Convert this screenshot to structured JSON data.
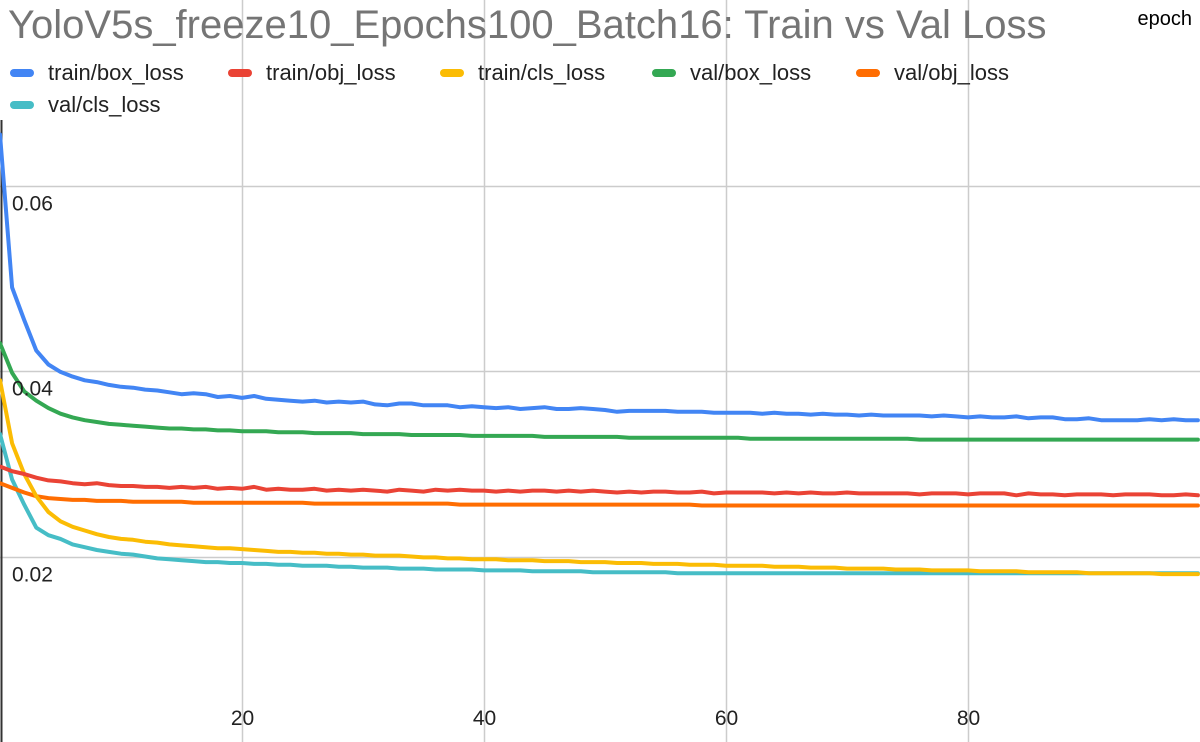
{
  "chart_data": {
    "type": "line",
    "title": "YoloV5s_freeze10_Epochs100_Batch16: Train vs Val Loss",
    "xlabel": "epoch",
    "ylabel": "",
    "xlim": [
      0,
      99
    ],
    "ylim": [
      0,
      0.066
    ],
    "x_ticks": [
      20,
      40,
      60,
      80
    ],
    "y_ticks": [
      0.02,
      0.04,
      0.06
    ],
    "x_tick_labels": [
      "20",
      "40",
      "60",
      "80"
    ],
    "y_tick_labels": [
      "0.02",
      "0.04",
      "0.06"
    ],
    "grid": true,
    "legend_position": "top",
    "x": [
      0,
      1,
      2,
      3,
      4,
      5,
      6,
      7,
      8,
      9,
      10,
      11,
      12,
      13,
      14,
      15,
      16,
      17,
      18,
      19,
      20,
      21,
      22,
      23,
      24,
      25,
      26,
      27,
      28,
      29,
      30,
      31,
      32,
      33,
      34,
      35,
      36,
      37,
      38,
      39,
      40,
      41,
      42,
      43,
      44,
      45,
      46,
      47,
      48,
      49,
      50,
      51,
      52,
      53,
      54,
      55,
      56,
      57,
      58,
      59,
      60,
      61,
      62,
      63,
      64,
      65,
      66,
      67,
      68,
      69,
      70,
      71,
      72,
      73,
      74,
      75,
      76,
      77,
      78,
      79,
      80,
      81,
      82,
      83,
      84,
      85,
      86,
      87,
      88,
      89,
      90,
      91,
      92,
      93,
      94,
      95,
      96,
      97,
      98,
      99
    ],
    "series": [
      {
        "name": "train/box_loss",
        "color": "#4285f4",
        "values": [
          0.0655,
          0.049,
          0.0455,
          0.0422,
          0.0407,
          0.0399,
          0.0394,
          0.039,
          0.0388,
          0.0385,
          0.0383,
          0.0382,
          0.038,
          0.0379,
          0.0377,
          0.0375,
          0.0376,
          0.0375,
          0.0372,
          0.0373,
          0.0371,
          0.0373,
          0.037,
          0.0369,
          0.0368,
          0.0367,
          0.0368,
          0.0366,
          0.0367,
          0.0366,
          0.0367,
          0.0364,
          0.0363,
          0.0365,
          0.0365,
          0.0363,
          0.0363,
          0.0363,
          0.0361,
          0.0362,
          0.0361,
          0.036,
          0.0361,
          0.0359,
          0.036,
          0.0361,
          0.0359,
          0.0359,
          0.036,
          0.0359,
          0.0358,
          0.0356,
          0.0357,
          0.0357,
          0.0357,
          0.0357,
          0.0356,
          0.0356,
          0.0356,
          0.0355,
          0.0355,
          0.0355,
          0.0355,
          0.0354,
          0.0355,
          0.0354,
          0.0354,
          0.0353,
          0.0354,
          0.0353,
          0.0353,
          0.0352,
          0.0353,
          0.0352,
          0.0352,
          0.0352,
          0.0352,
          0.0351,
          0.0352,
          0.0351,
          0.035,
          0.0351,
          0.035,
          0.035,
          0.0351,
          0.0349,
          0.035,
          0.035,
          0.0348,
          0.0348,
          0.0349,
          0.0347,
          0.0347,
          0.0347,
          0.0347,
          0.0348,
          0.0347,
          0.0348,
          0.0347,
          0.0347
        ]
      },
      {
        "name": "train/obj_loss",
        "color": "#ea4335",
        "values": [
          0.0297,
          0.0292,
          0.0289,
          0.0285,
          0.0282,
          0.0281,
          0.0279,
          0.0278,
          0.0279,
          0.0277,
          0.0276,
          0.0276,
          0.0275,
          0.0275,
          0.0274,
          0.0275,
          0.0274,
          0.0275,
          0.0273,
          0.0274,
          0.0273,
          0.0275,
          0.0272,
          0.0273,
          0.0272,
          0.0272,
          0.0273,
          0.0271,
          0.0272,
          0.0271,
          0.0272,
          0.0271,
          0.027,
          0.0272,
          0.0271,
          0.027,
          0.0272,
          0.0271,
          0.0272,
          0.0271,
          0.0271,
          0.027,
          0.0271,
          0.027,
          0.0271,
          0.0271,
          0.027,
          0.0271,
          0.027,
          0.0271,
          0.027,
          0.0269,
          0.027,
          0.0269,
          0.027,
          0.027,
          0.0269,
          0.0269,
          0.027,
          0.0268,
          0.0269,
          0.0269,
          0.0269,
          0.0269,
          0.0268,
          0.0269,
          0.0268,
          0.0269,
          0.0268,
          0.0268,
          0.0269,
          0.0268,
          0.0268,
          0.0268,
          0.0268,
          0.0268,
          0.0267,
          0.0268,
          0.0268,
          0.0268,
          0.0267,
          0.0268,
          0.0268,
          0.0268,
          0.0266,
          0.0268,
          0.0267,
          0.0267,
          0.0266,
          0.0267,
          0.0267,
          0.0267,
          0.0266,
          0.0267,
          0.0267,
          0.0267,
          0.0266,
          0.0266,
          0.0267,
          0.0266
        ]
      },
      {
        "name": "train/cls_loss",
        "color": "#fbbc04",
        "values": [
          0.039,
          0.0322,
          0.0289,
          0.0265,
          0.0248,
          0.0238,
          0.0232,
          0.0228,
          0.0224,
          0.0221,
          0.0219,
          0.0218,
          0.0216,
          0.0215,
          0.0213,
          0.0212,
          0.0211,
          0.021,
          0.0209,
          0.0209,
          0.0208,
          0.0207,
          0.0206,
          0.0205,
          0.0205,
          0.0204,
          0.0204,
          0.0203,
          0.0203,
          0.0202,
          0.0202,
          0.0201,
          0.0201,
          0.0201,
          0.02,
          0.0199,
          0.0199,
          0.0198,
          0.0198,
          0.0197,
          0.0197,
          0.0197,
          0.0196,
          0.0196,
          0.0196,
          0.0195,
          0.0195,
          0.0195,
          0.0194,
          0.0194,
          0.0194,
          0.0193,
          0.0193,
          0.0193,
          0.0192,
          0.0192,
          0.0192,
          0.0191,
          0.0191,
          0.0191,
          0.019,
          0.019,
          0.019,
          0.019,
          0.0189,
          0.0189,
          0.0189,
          0.0188,
          0.0188,
          0.0188,
          0.0187,
          0.0187,
          0.0187,
          0.0187,
          0.0186,
          0.0186,
          0.0186,
          0.0185,
          0.0185,
          0.0185,
          0.0185,
          0.0184,
          0.0184,
          0.0184,
          0.0184,
          0.0183,
          0.0183,
          0.0183,
          0.0183,
          0.0183,
          0.0182,
          0.0182,
          0.0182,
          0.0182,
          0.0182,
          0.0182,
          0.0181,
          0.0181,
          0.0181,
          0.0181
        ]
      },
      {
        "name": "val/box_loss",
        "color": "#34a853",
        "values": [
          0.043,
          0.0398,
          0.0378,
          0.0368,
          0.036,
          0.0354,
          0.035,
          0.0347,
          0.0345,
          0.0343,
          0.0342,
          0.0341,
          0.034,
          0.0339,
          0.0338,
          0.0338,
          0.0337,
          0.0337,
          0.0336,
          0.0336,
          0.0335,
          0.0335,
          0.0335,
          0.0334,
          0.0334,
          0.0334,
          0.0333,
          0.0333,
          0.0333,
          0.0333,
          0.0332,
          0.0332,
          0.0332,
          0.0332,
          0.0331,
          0.0331,
          0.0331,
          0.0331,
          0.0331,
          0.033,
          0.033,
          0.033,
          0.033,
          0.033,
          0.033,
          0.0329,
          0.0329,
          0.0329,
          0.0329,
          0.0329,
          0.0329,
          0.0329,
          0.0328,
          0.0328,
          0.0328,
          0.0328,
          0.0328,
          0.0328,
          0.0328,
          0.0328,
          0.0328,
          0.0328,
          0.0327,
          0.0327,
          0.0327,
          0.0327,
          0.0327,
          0.0327,
          0.0327,
          0.0327,
          0.0327,
          0.0327,
          0.0327,
          0.0327,
          0.0327,
          0.0327,
          0.0326,
          0.0326,
          0.0326,
          0.0326,
          0.0326,
          0.0326,
          0.0326,
          0.0326,
          0.0326,
          0.0326,
          0.0326,
          0.0326,
          0.0326,
          0.0326,
          0.0326,
          0.0326,
          0.0326,
          0.0326,
          0.0326,
          0.0326,
          0.0326,
          0.0326,
          0.0326,
          0.0326
        ]
      },
      {
        "name": "val/obj_loss",
        "color": "#ff6d01",
        "values": [
          0.0279,
          0.0274,
          0.0269,
          0.0265,
          0.0263,
          0.0262,
          0.0261,
          0.0261,
          0.026,
          0.026,
          0.026,
          0.0259,
          0.0259,
          0.0259,
          0.0259,
          0.0259,
          0.0258,
          0.0258,
          0.0258,
          0.0258,
          0.0258,
          0.0258,
          0.0258,
          0.0258,
          0.0258,
          0.0258,
          0.0257,
          0.0257,
          0.0257,
          0.0257,
          0.0257,
          0.0257,
          0.0257,
          0.0257,
          0.0257,
          0.0257,
          0.0257,
          0.0257,
          0.0256,
          0.0256,
          0.0256,
          0.0256,
          0.0256,
          0.0256,
          0.0256,
          0.0256,
          0.0256,
          0.0256,
          0.0256,
          0.0256,
          0.0256,
          0.0256,
          0.0256,
          0.0256,
          0.0256,
          0.0256,
          0.0256,
          0.0256,
          0.0255,
          0.0255,
          0.0255,
          0.0255,
          0.0255,
          0.0255,
          0.0255,
          0.0255,
          0.0255,
          0.0255,
          0.0255,
          0.0255,
          0.0255,
          0.0255,
          0.0255,
          0.0255,
          0.0255,
          0.0255,
          0.0255,
          0.0255,
          0.0255,
          0.0255,
          0.0255,
          0.0255,
          0.0255,
          0.0255,
          0.0255,
          0.0255,
          0.0255,
          0.0255,
          0.0255,
          0.0255,
          0.0255,
          0.0255,
          0.0255,
          0.0255,
          0.0255,
          0.0255,
          0.0255,
          0.0255,
          0.0255,
          0.0255
        ]
      },
      {
        "name": "val/cls_loss",
        "color": "#46bdc6",
        "values": [
          0.0332,
          0.0283,
          0.0256,
          0.0231,
          0.0223,
          0.0219,
          0.0213,
          0.021,
          0.0207,
          0.0205,
          0.0203,
          0.0202,
          0.02,
          0.0198,
          0.0197,
          0.0196,
          0.0195,
          0.0194,
          0.0194,
          0.0193,
          0.0193,
          0.0192,
          0.0192,
          0.0191,
          0.0191,
          0.019,
          0.019,
          0.019,
          0.0189,
          0.0189,
          0.0188,
          0.0188,
          0.0188,
          0.0187,
          0.0187,
          0.0187,
          0.0186,
          0.0186,
          0.0186,
          0.0186,
          0.0185,
          0.0185,
          0.0185,
          0.0185,
          0.0184,
          0.0184,
          0.0184,
          0.0184,
          0.0184,
          0.0183,
          0.0183,
          0.0183,
          0.0183,
          0.0183,
          0.0183,
          0.0183,
          0.0182,
          0.0182,
          0.0182,
          0.0182,
          0.0182,
          0.0182,
          0.0182,
          0.0182,
          0.0182,
          0.0182,
          0.0182,
          0.0182,
          0.0182,
          0.0182,
          0.0182,
          0.0182,
          0.0182,
          0.0182,
          0.0182,
          0.0182,
          0.0182,
          0.0182,
          0.0182,
          0.0182,
          0.0182,
          0.0182,
          0.0182,
          0.0182,
          0.0182,
          0.0182,
          0.0182,
          0.0182,
          0.0182,
          0.0182,
          0.0182,
          0.0182,
          0.0182,
          0.0182,
          0.0182,
          0.0182,
          0.0182,
          0.0182,
          0.0182,
          0.0182
        ]
      }
    ]
  }
}
